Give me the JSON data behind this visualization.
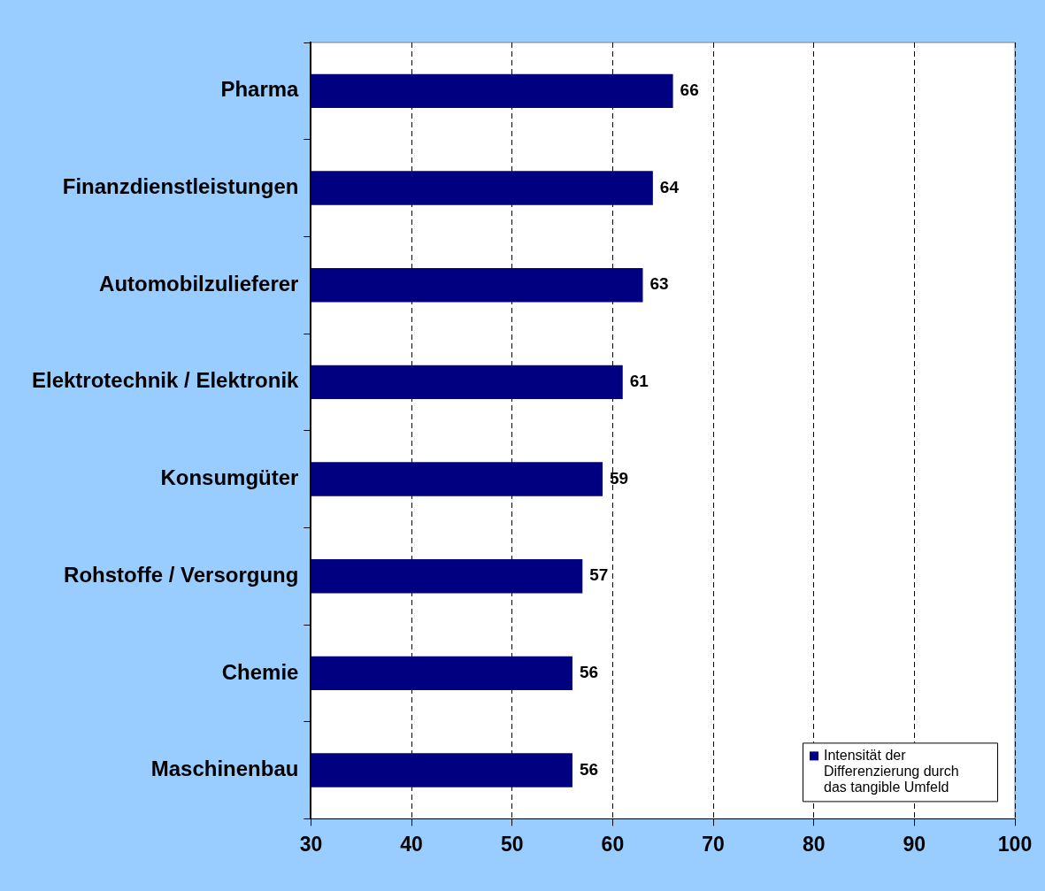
{
  "chart_data": {
    "type": "bar",
    "orientation": "horizontal",
    "categories": [
      "Pharma",
      "Finanzdienstleistungen",
      "Automobilzulieferer",
      "Elektrotechnik / Elektronik",
      "Konsumgüter",
      "Rohstoffe / Versorgung",
      "Chemie",
      "Maschinenbau"
    ],
    "series": [
      {
        "name": "Intensität der Differenzierung durch das tangible Umfeld",
        "color": "#000080",
        "values": [
          66,
          64,
          63,
          61,
          59,
          57,
          56,
          56
        ]
      }
    ],
    "xlim": [
      30,
      100
    ],
    "xticks": [
      30,
      40,
      50,
      60,
      70,
      80,
      90,
      100
    ],
    "grid": "x",
    "line_style": "dashed",
    "legend": "bottom right",
    "data_labels": true
  }
}
